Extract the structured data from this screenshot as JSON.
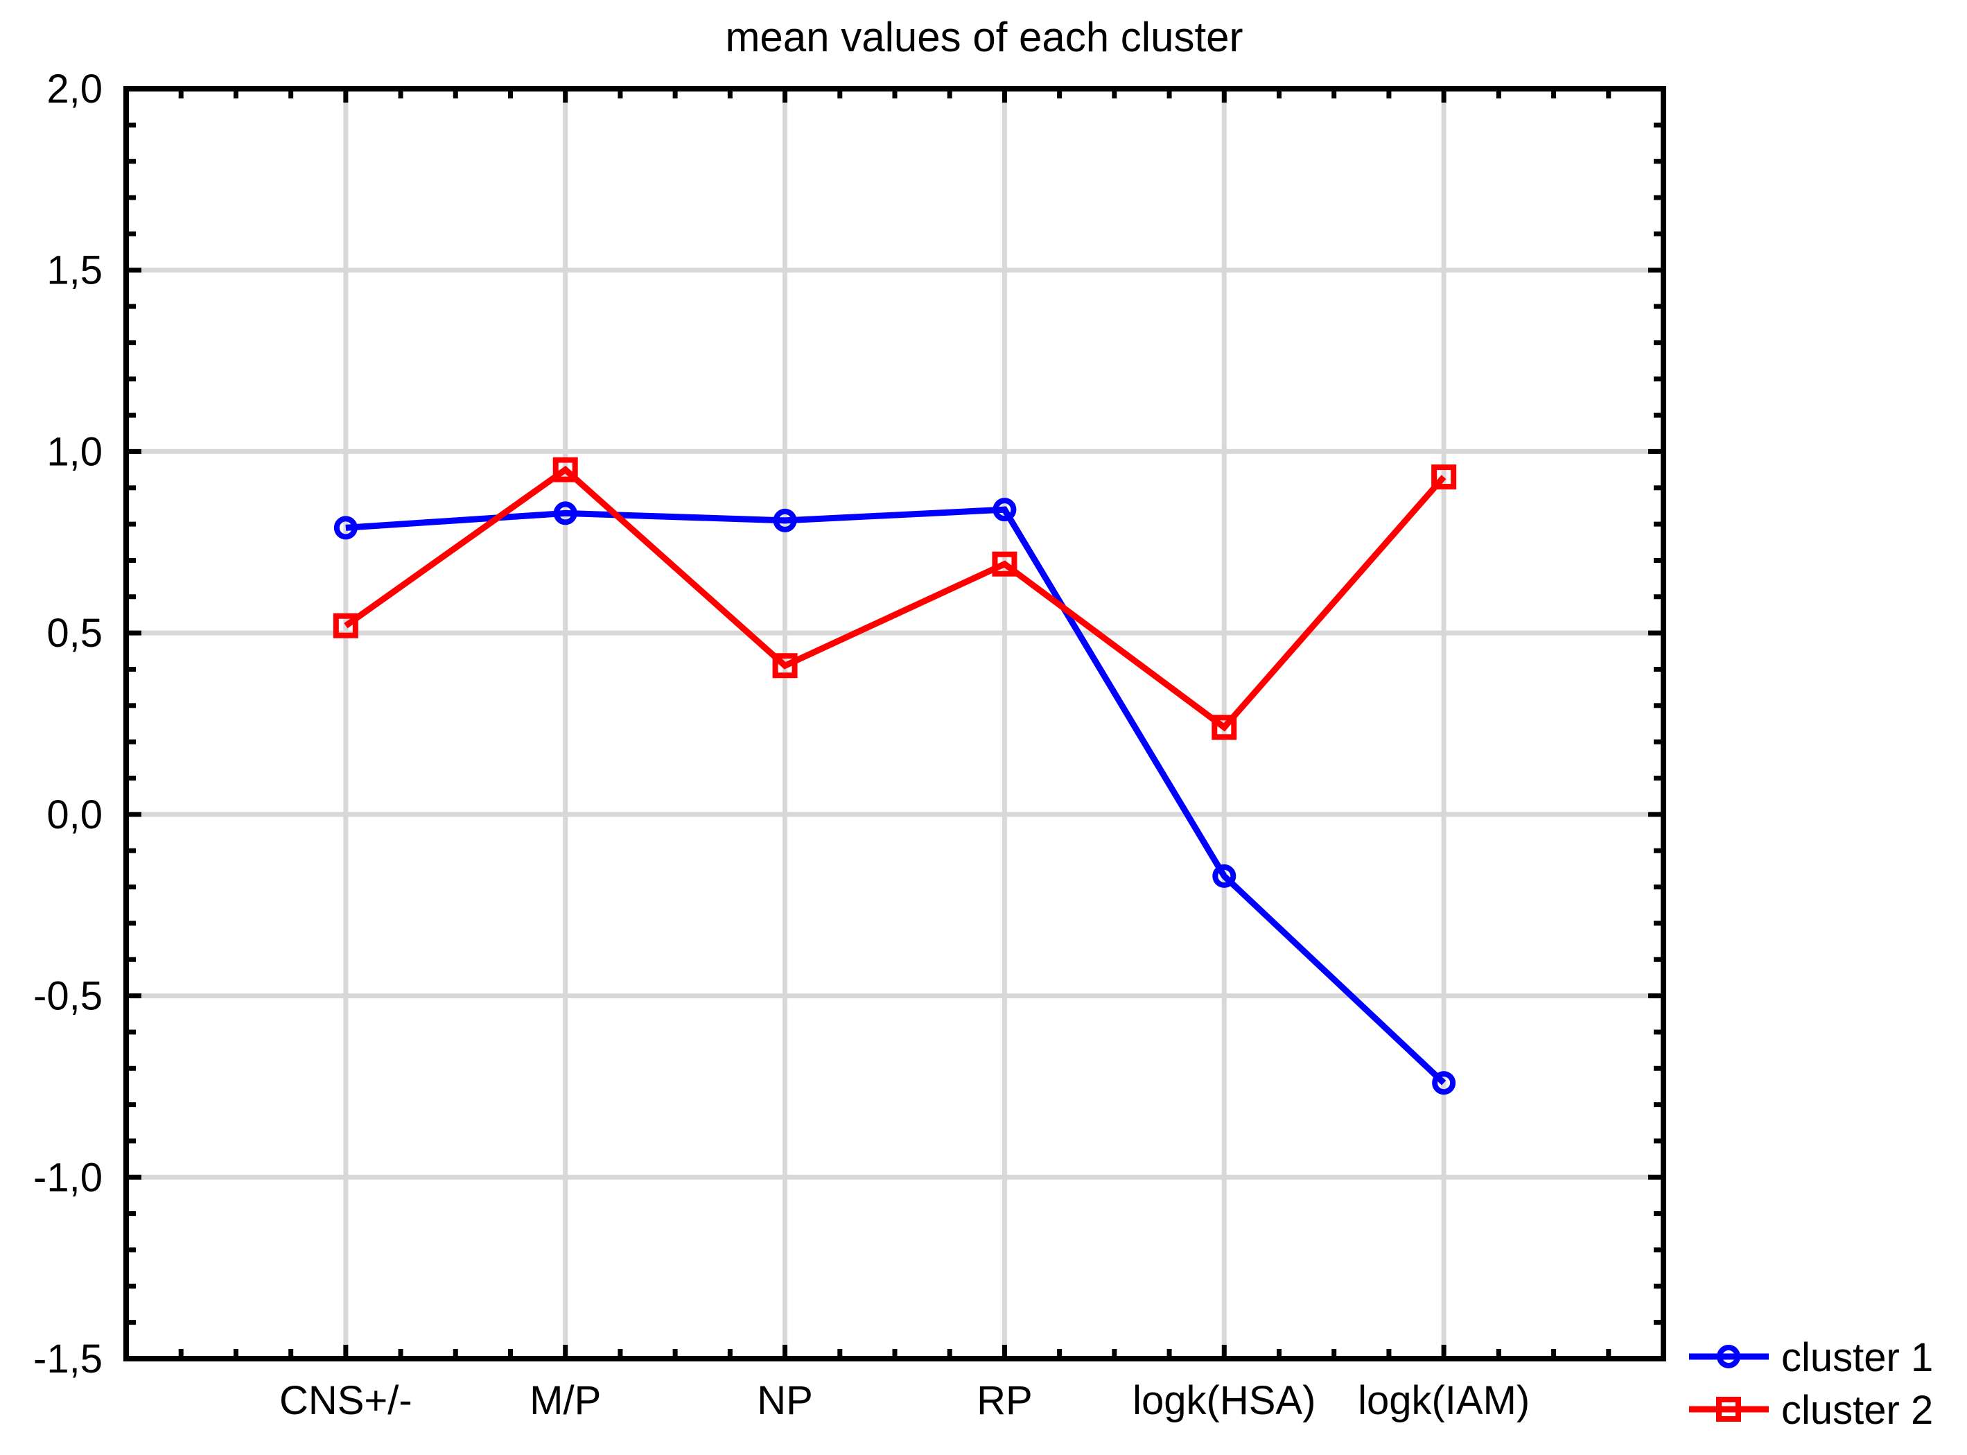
{
  "chart_data": {
    "type": "line",
    "title": "mean values of each cluster",
    "categories": [
      "CNS+/-",
      "M/P",
      "NP",
      "RP",
      "logk(HSA)",
      "logk(IAM)"
    ],
    "series": [
      {
        "name": "cluster 1",
        "color": "#0000FF",
        "marker": "circle",
        "values": [
          0.79,
          0.83,
          0.81,
          0.84,
          -0.17,
          -0.74
        ]
      },
      {
        "name": "cluster 2",
        "color": "#FF0000",
        "marker": "square",
        "values": [
          0.52,
          0.95,
          0.41,
          0.69,
          0.24,
          0.93
        ]
      }
    ],
    "y_axis": {
      "min": -1.5,
      "max": 2.0,
      "major_step": 0.5,
      "minor_step": 0.1,
      "tick_labels": [
        "2,0",
        "1,5",
        "1,0",
        "0,5",
        "0,0",
        "-0,5",
        "-1,0",
        "-1,5"
      ]
    },
    "x_axis": {
      "minor_ticks_per_interval": 4
    },
    "grid": {
      "show": true,
      "color": "#D8D8D8"
    },
    "axis_color": "#000000",
    "background": "#FFFFFF",
    "legend": {
      "position": "bottom-right",
      "items": [
        "cluster 1",
        "cluster 2"
      ]
    },
    "decimal_separator": ","
  }
}
